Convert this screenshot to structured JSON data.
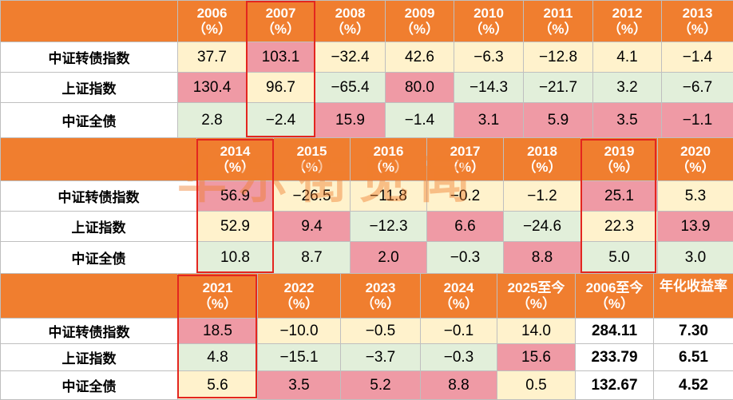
{
  "row_labels": [
    "中证转债指数",
    "上证指数",
    "中证全债"
  ],
  "blocks": [
    {
      "headers": [
        {
          "year": "2006",
          "unit": "（%）"
        },
        {
          "year": "2007",
          "unit": "（%）"
        },
        {
          "year": "2008",
          "unit": "（%）"
        },
        {
          "year": "2009",
          "unit": "（%）"
        },
        {
          "year": "2010",
          "unit": "（%）"
        },
        {
          "year": "2011",
          "unit": "（%）"
        },
        {
          "year": "2012",
          "unit": "（%）"
        },
        {
          "year": "2013",
          "unit": "（%）"
        }
      ],
      "rows": [
        [
          "37.7",
          "103.1",
          "−32.4",
          "42.6",
          "−6.3",
          "−12.8",
          "4.1",
          "−1.4"
        ],
        [
          "130.4",
          "96.7",
          "−65.4",
          "80.0",
          "−14.3",
          "−21.7",
          "3.2",
          "−6.7"
        ],
        [
          "2.8",
          "−2.4",
          "15.9",
          "−1.4",
          "3.1",
          "5.9",
          "3.5",
          "−1.1"
        ]
      ]
    },
    {
      "headers": [
        {
          "year": "2014",
          "unit": "（%）"
        },
        {
          "year": "2015",
          "unit": "（%）"
        },
        {
          "year": "2016",
          "unit": "（%）"
        },
        {
          "year": "2017",
          "unit": "（%）"
        },
        {
          "year": "2018",
          "unit": "（%）"
        },
        {
          "year": "2019",
          "unit": "（%）"
        },
        {
          "year": "2020",
          "unit": "（%）"
        }
      ],
      "rows": [
        [
          "56.9",
          "−26.5",
          "−11.8",
          "−0.2",
          "−1.2",
          "25.1",
          "5.3"
        ],
        [
          "52.9",
          "9.4",
          "−12.3",
          "6.6",
          "−24.6",
          "22.3",
          "13.9"
        ],
        [
          "10.8",
          "8.7",
          "2.0",
          "−0.3",
          "8.8",
          "5.0",
          "3.0"
        ]
      ]
    },
    {
      "headers": [
        {
          "year": "2021",
          "unit": "（%）"
        },
        {
          "year": "2022",
          "unit": "（%）"
        },
        {
          "year": "2023",
          "unit": "（%）"
        },
        {
          "year": "2024",
          "unit": "（%）"
        },
        {
          "year": "2025至今",
          "unit": "（%）"
        },
        {
          "year": "2006至今",
          "unit": "（%）"
        },
        {
          "year": "年化收益率",
          "unit": ""
        }
      ],
      "rows": [
        [
          "18.5",
          "−10.0",
          "−0.5",
          "−0.1",
          "14.0",
          "284.11",
          "7.30"
        ],
        [
          "4.8",
          "−15.1",
          "−3.7",
          "−0.3",
          "15.6",
          "233.79",
          "6.51"
        ],
        [
          "5.6",
          "3.5",
          "5.2",
          "8.8",
          "0.5",
          "132.67",
          "4.52"
        ]
      ]
    }
  ],
  "cell_colors": {
    "yellow": "#fff2cc",
    "pink": "#ef9aa5",
    "green": "#e2efda",
    "header_orange": "#f07e2f",
    "highlight_red": "#e3261f"
  },
  "highlighted_columns": [
    "2007",
    "2014",
    "2019",
    "2021"
  ],
  "watermark": "华尔街见闻"
}
